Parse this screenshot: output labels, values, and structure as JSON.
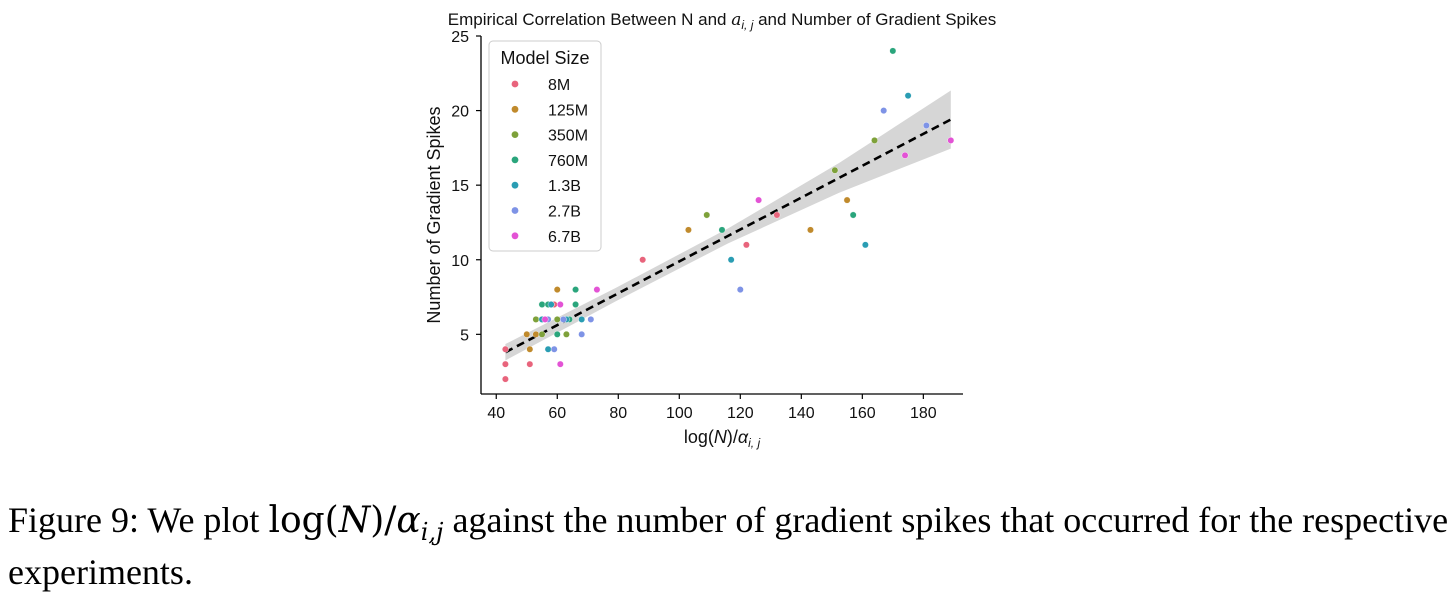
{
  "chart_data": {
    "type": "scatter",
    "title": "Empirical Correlation Between N and a_{i,j} and Number of Gradient Spikes",
    "title_parts": {
      "before": "Empirical Correlation Between N and ",
      "math": "a",
      "sub": "i, j",
      "after": " and Number of Gradient Spikes"
    },
    "xlabel": "log(N)/α_{i,j}",
    "xlabel_parts": {
      "before": "log(",
      "n": "N",
      "mid": ")/",
      "alpha": "α",
      "sub": "i, j"
    },
    "ylabel": "Number of Gradient Spikes",
    "xlim": [
      35,
      193
    ],
    "ylim": [
      1,
      25
    ],
    "xticks": [
      40,
      60,
      80,
      100,
      120,
      140,
      160,
      180
    ],
    "yticks": [
      5,
      10,
      15,
      20,
      25
    ],
    "legend": {
      "title": "Model Size",
      "position": "top-left",
      "entries": [
        "8M",
        "125M",
        "350M",
        "760M",
        "1.3B",
        "2.7B",
        "6.7B"
      ]
    },
    "series": [
      {
        "name": "8M",
        "color": "#e8647c",
        "points": [
          [
            43,
            4
          ],
          [
            43,
            3
          ],
          [
            43,
            2
          ],
          [
            51,
            3
          ],
          [
            59,
            7
          ],
          [
            88,
            10
          ],
          [
            122,
            11
          ],
          [
            132,
            13
          ]
        ]
      },
      {
        "name": "125M",
        "color": "#c08a2c",
        "points": [
          [
            50,
            5
          ],
          [
            51,
            4
          ],
          [
            53,
            5
          ],
          [
            58,
            7
          ],
          [
            60,
            8
          ],
          [
            103,
            12
          ],
          [
            143,
            12
          ],
          [
            155,
            14
          ]
        ]
      },
      {
        "name": "350M",
        "color": "#7ea13a",
        "points": [
          [
            53,
            6
          ],
          [
            55,
            5
          ],
          [
            60,
            6
          ],
          [
            63,
            5
          ],
          [
            109,
            13
          ],
          [
            151,
            16
          ],
          [
            164,
            18
          ]
        ]
      },
      {
        "name": "760M",
        "color": "#2aa57c",
        "points": [
          [
            55,
            7
          ],
          [
            57,
            7
          ],
          [
            60,
            5
          ],
          [
            64,
            6
          ],
          [
            66,
            8
          ],
          [
            66,
            7
          ],
          [
            114,
            12
          ],
          [
            157,
            13
          ],
          [
            170,
            24
          ]
        ]
      },
      {
        "name": "1.3B",
        "color": "#2a9db3",
        "points": [
          [
            55,
            6
          ],
          [
            57,
            4
          ],
          [
            58,
            7
          ],
          [
            63,
            6
          ],
          [
            68,
            6
          ],
          [
            117,
            10
          ],
          [
            161,
            11
          ],
          [
            175,
            21
          ]
        ]
      },
      {
        "name": "2.7B",
        "color": "#7e93e6",
        "points": [
          [
            57,
            6
          ],
          [
            59,
            4
          ],
          [
            62,
            6
          ],
          [
            68,
            5
          ],
          [
            71,
            6
          ],
          [
            120,
            8
          ],
          [
            167,
            20
          ],
          [
            181,
            19
          ]
        ]
      },
      {
        "name": "6.7B",
        "color": "#e353d5",
        "points": [
          [
            56,
            6
          ],
          [
            61,
            7
          ],
          [
            61,
            3
          ],
          [
            73,
            8
          ],
          [
            126,
            14
          ],
          [
            174,
            17
          ],
          [
            189,
            18
          ]
        ]
      }
    ],
    "regression": {
      "style": "dashed",
      "color": "#000000",
      "x_range": [
        43,
        189
      ],
      "y_start": 3.8,
      "y_end": 19.4,
      "band_color": "#d6d6d6",
      "band_halfwidth": [
        0.55,
        0.45,
        0.5,
        1.0,
        1.95
      ]
    }
  },
  "caption": {
    "label": "Figure 9:",
    "text_before": "We plot ",
    "math_log": "log(",
    "math_N": "N",
    "math_mid": ")/",
    "math_alpha": "α",
    "math_sub": "i,j",
    "text_after": " against the number of gradient spikes that occurred for the respective experiments."
  }
}
